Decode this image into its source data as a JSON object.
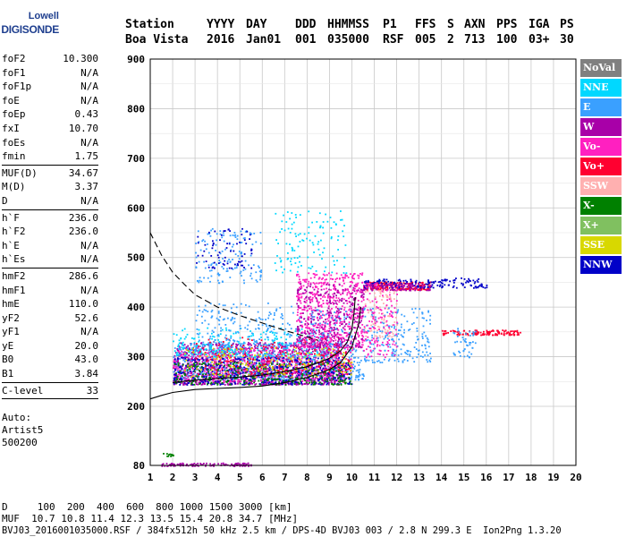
{
  "logo": {
    "line1": "Lowell",
    "line2": "DIGISONDE"
  },
  "header": {
    "labels": [
      "Station",
      "YYYY",
      "DAY",
      "DDD",
      "HHMMSS",
      "P1",
      "FFS",
      "S",
      "AXN",
      "PPS",
      "IGA",
      "PS"
    ],
    "values": [
      "Boa Vista",
      "2016",
      "Jan01",
      "001",
      "035000",
      "RSF",
      "005",
      "2",
      "713",
      "100",
      "03+",
      "30"
    ]
  },
  "params": [
    {
      "group": [
        {
          "k": "foF2",
          "v": "10.300"
        },
        {
          "k": "foF1",
          "v": "N/A"
        },
        {
          "k": "foF1p",
          "v": "N/A"
        },
        {
          "k": "foE",
          "v": "N/A"
        },
        {
          "k": "foEp",
          "v": "0.43"
        },
        {
          "k": "fxI",
          "v": "10.70"
        },
        {
          "k": "foEs",
          "v": "N/A"
        },
        {
          "k": "fmin",
          "v": "1.75"
        }
      ]
    },
    {
      "group": [
        {
          "k": "MUF(D)",
          "v": "34.67"
        },
        {
          "k": "M(D)",
          "v": "3.37"
        },
        {
          "k": "D",
          "v": "N/A"
        }
      ]
    },
    {
      "group": [
        {
          "k": "h`F",
          "v": "236.0"
        },
        {
          "k": "h`F2",
          "v": "236.0"
        },
        {
          "k": "h`E",
          "v": "N/A"
        },
        {
          "k": "h`Es",
          "v": "N/A"
        }
      ]
    },
    {
      "group": [
        {
          "k": "hmF2",
          "v": "286.6"
        },
        {
          "k": "hmF1",
          "v": "N/A"
        },
        {
          "k": "hmE",
          "v": "110.0"
        },
        {
          "k": "yF2",
          "v": "52.6"
        },
        {
          "k": "yF1",
          "v": "N/A"
        },
        {
          "k": "yE",
          "v": "20.0"
        },
        {
          "k": "B0",
          "v": "43.0"
        },
        {
          "k": "B1",
          "v": "3.84"
        }
      ]
    },
    {
      "group": [
        {
          "k": "C-level",
          "v": "33"
        }
      ]
    }
  ],
  "auto": {
    "line1": "Auto:",
    "line2": "Artist5",
    "line3": "500200"
  },
  "legend": [
    {
      "label": "NoVal",
      "color": "#808080"
    },
    {
      "label": "NNE",
      "color": "#00d8ff"
    },
    {
      "label": "E",
      "color": "#3aa0ff"
    },
    {
      "label": "W",
      "color": "#a800a8"
    },
    {
      "label": "Vo-",
      "color": "#ff20c0"
    },
    {
      "label": "Vo+",
      "color": "#ff0030"
    },
    {
      "label": "SSW",
      "color": "#ffb0b0"
    },
    {
      "label": "X-",
      "color": "#008000"
    },
    {
      "label": "X+",
      "color": "#80c060"
    },
    {
      "label": "SSE",
      "color": "#d8d800"
    },
    {
      "label": "NNW",
      "color": "#0000c8"
    }
  ],
  "bottom": {
    "line1": "D     100  200  400  600  800 1000 1500 3000 [km]",
    "line2": "MUF  10.7 10.8 11.4 12.3 13.5 15.4 20.8 34.7 [MHz]",
    "line3": "BVJ03_2016001035000.RSF / 384fx512h 50 kHz 2.5 km / DPS-4D BVJ03 003 / 2.8 N 299.3 E  Ion2Png 1.3.20"
  },
  "chart_data": {
    "type": "scatter",
    "title": "",
    "xlabel": "",
    "ylabel": "",
    "xlim": [
      1,
      20
    ],
    "ylim": [
      80,
      900
    ],
    "x_ticks": [
      1,
      2,
      3,
      4,
      5,
      6,
      7,
      8,
      9,
      10,
      11,
      12,
      13,
      14,
      15,
      16,
      17,
      18,
      19,
      20
    ],
    "y_ticks": [
      80,
      200,
      300,
      400,
      500,
      600,
      700,
      800,
      900
    ],
    "grid": true,
    "clusters": [
      {
        "color": "#a800a8",
        "f": [
          2.0,
          9.5
        ],
        "h": [
          245,
          330
        ],
        "n": 1300
      },
      {
        "color": "#3aa0ff",
        "f": [
          2.0,
          10.5
        ],
        "h": [
          255,
          330
        ],
        "n": 650
      },
      {
        "color": "#ff20c0",
        "f": [
          2.0,
          10.0
        ],
        "h": [
          250,
          320
        ],
        "n": 500
      },
      {
        "color": "#0000c8",
        "f": [
          2.0,
          10.0
        ],
        "h": [
          245,
          300
        ],
        "n": 450
      },
      {
        "color": "#008000",
        "f": [
          2.0,
          10.0
        ],
        "h": [
          245,
          290
        ],
        "n": 300
      },
      {
        "color": "#00d8ff",
        "f": [
          2.0,
          9.0
        ],
        "h": [
          300,
          360
        ],
        "n": 260
      },
      {
        "color": "#ff0030",
        "f": [
          3.0,
          10.0
        ],
        "h": [
          265,
          340
        ],
        "n": 220
      },
      {
        "color": "#d8d800",
        "f": [
          2.5,
          10.0
        ],
        "h": [
          260,
          320
        ],
        "n": 160
      },
      {
        "color": "#ff20c0",
        "f": [
          7.5,
          10.5
        ],
        "h": [
          320,
          470
        ],
        "n": 650
      },
      {
        "color": "#a800a8",
        "f": [
          7.5,
          10.5
        ],
        "h": [
          320,
          450
        ],
        "n": 300
      },
      {
        "color": "#3aa0ff",
        "f": [
          3.0,
          10.0
        ],
        "h": [
          320,
          410
        ],
        "n": 240
      },
      {
        "color": "#3aa0ff",
        "f": [
          3.0,
          6.0
        ],
        "h": [
          450,
          560
        ],
        "n": 140
      },
      {
        "color": "#0000c8",
        "f": [
          3.0,
          5.5
        ],
        "h": [
          480,
          560
        ],
        "n": 70
      },
      {
        "color": "#00d8ff",
        "f": [
          6.5,
          9.8
        ],
        "h": [
          470,
          600
        ],
        "n": 120
      },
      {
        "color": "#ff0030",
        "f": [
          10.5,
          13.5
        ],
        "h": [
          436,
          452
        ],
        "n": 220
      },
      {
        "color": "#0000c8",
        "f": [
          10.5,
          14.5
        ],
        "h": [
          440,
          458
        ],
        "n": 140
      },
      {
        "color": "#a800a8",
        "f": [
          10.5,
          13.5
        ],
        "h": [
          435,
          450
        ],
        "n": 100
      },
      {
        "color": "#ffb0b0",
        "f": [
          10.5,
          12.0
        ],
        "h": [
          340,
          440
        ],
        "n": 110
      },
      {
        "color": "#3aa0ff",
        "f": [
          10.5,
          13.5
        ],
        "h": [
          290,
          400
        ],
        "n": 200
      },
      {
        "color": "#ff20c0",
        "f": [
          10.5,
          12.0
        ],
        "h": [
          300,
          450
        ],
        "n": 130
      },
      {
        "color": "#ff0030",
        "f": [
          14.0,
          17.5
        ],
        "h": [
          345,
          355
        ],
        "n": 120
      },
      {
        "color": "#3aa0ff",
        "f": [
          14.5,
          15.5
        ],
        "h": [
          300,
          360
        ],
        "n": 50
      },
      {
        "color": "#0000c8",
        "f": [
          14.5,
          16.0
        ],
        "h": [
          440,
          460
        ],
        "n": 45
      },
      {
        "color": "#a800a8",
        "f": [
          1.5,
          5.5
        ],
        "h": [
          80,
          86
        ],
        "n": 110
      },
      {
        "color": "#008000",
        "f": [
          1.5,
          2.0
        ],
        "h": [
          100,
          110
        ],
        "n": 14
      }
    ],
    "curves": [
      {
        "name": "",
        "style": "dashed",
        "color": "#000000",
        "points": [
          [
            1.0,
            550
          ],
          [
            1.5,
            505
          ],
          [
            2.0,
            470
          ],
          [
            2.5,
            447
          ],
          [
            3.0,
            425
          ],
          [
            4.0,
            400
          ],
          [
            5.0,
            383
          ],
          [
            6.0,
            368
          ],
          [
            7.0,
            353
          ],
          [
            8.0,
            340
          ],
          [
            8.5,
            333
          ]
        ]
      },
      {
        "name": "",
        "style": "solid",
        "color": "#000000",
        "points": [
          [
            1.0,
            215
          ],
          [
            1.5,
            222
          ],
          [
            2.0,
            228
          ],
          [
            3.0,
            234
          ],
          [
            4.0,
            236
          ],
          [
            5.0,
            238
          ],
          [
            6.0,
            241
          ],
          [
            7.0,
            248
          ],
          [
            8.0,
            258
          ],
          [
            9.0,
            274
          ],
          [
            9.5,
            288
          ],
          [
            10.0,
            320
          ],
          [
            10.3,
            365
          ],
          [
            10.4,
            400
          ]
        ]
      },
      {
        "name": "",
        "style": "solid",
        "color": "#000000",
        "points": [
          [
            2.0,
            248
          ],
          [
            3.0,
            253
          ],
          [
            4.0,
            256
          ],
          [
            5.0,
            259
          ],
          [
            6.0,
            263
          ],
          [
            7.0,
            270
          ],
          [
            8.0,
            280
          ],
          [
            8.5,
            288
          ],
          [
            9.0,
            297
          ],
          [
            9.5,
            312
          ],
          [
            9.8,
            330
          ],
          [
            10.0,
            355
          ],
          [
            10.1,
            390
          ],
          [
            10.15,
            420
          ]
        ]
      }
    ]
  }
}
